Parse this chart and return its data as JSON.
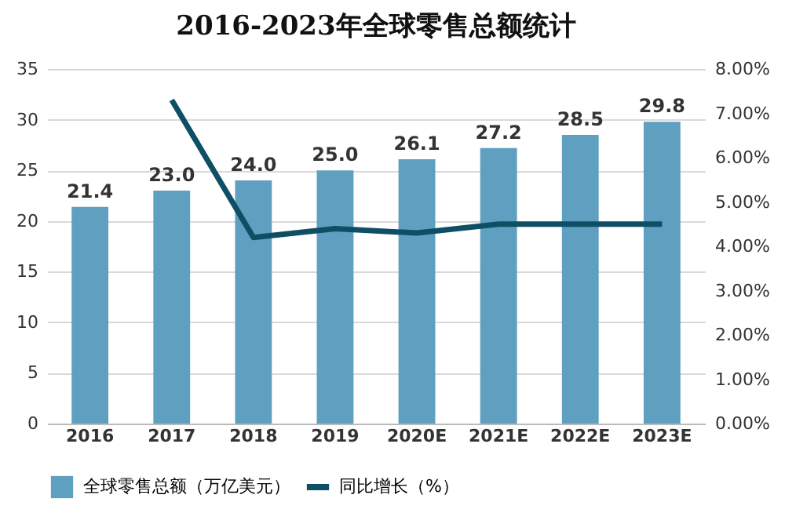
{
  "chart_data": {
    "type": "bar",
    "title": "2016-2023年全球零售总额统计",
    "categories": [
      "2016",
      "2017",
      "2018",
      "2019",
      "2020E",
      "2021E",
      "2022E",
      "2023E"
    ],
    "series": [
      {
        "name": "全球零售总额（万亿美元）",
        "color": "#5f9fc0",
        "values": [
          21.4,
          23.0,
          24.0,
          25.0,
          26.1,
          27.2,
          28.5,
          29.8
        ],
        "value_labels": [
          "21.4",
          "23.0",
          "24.0",
          "25.0",
          "26.1",
          "27.2",
          "28.5",
          "29.8"
        ]
      },
      {
        "name": "同比增长（%）",
        "type": "line",
        "axis": "y2",
        "color": "#0e4f66",
        "values": [
          null,
          7.3,
          4.2,
          4.4,
          4.3,
          4.5,
          4.5,
          4.5
        ]
      }
    ],
    "ylim": [
      0,
      35
    ],
    "yticks": [
      0,
      5,
      10,
      15,
      20,
      25,
      30,
      35
    ],
    "y2lim": [
      0,
      8
    ],
    "y2ticks": [
      {
        "value": 0,
        "label": "0.00%"
      },
      {
        "value": 1,
        "label": "1.00%"
      },
      {
        "value": 2,
        "label": "2.00%"
      },
      {
        "value": 3,
        "label": "3.00%"
      },
      {
        "value": 4,
        "label": "4.00%"
      },
      {
        "value": 5,
        "label": "5.00%"
      },
      {
        "value": 6,
        "label": "6.00%"
      },
      {
        "value": 7,
        "label": "7.00%"
      },
      {
        "value": 8,
        "label": "8.00%"
      }
    ],
    "grid": "y",
    "legend": "bottom",
    "marker": "none",
    "line_style": "solid"
  }
}
